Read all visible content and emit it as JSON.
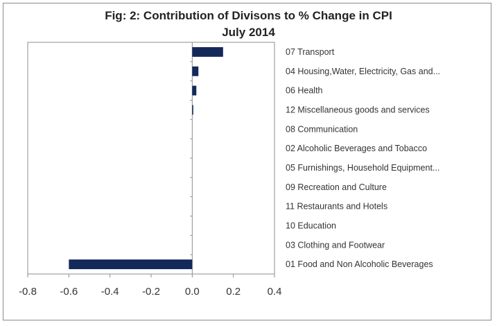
{
  "chart_data": {
    "type": "bar",
    "orientation": "horizontal",
    "title_line1": "Fig: 2: Contribution of Divisons to % Change in CPI",
    "title_line2": "July 2014",
    "categories": [
      "07 Transport",
      "04 Housing,Water, Electricity, Gas and...",
      "06 Health",
      "12 Miscellaneous goods and services",
      "08 Communication",
      "02 Alcoholic Beverages and Tobacco",
      "05 Furnishings, Household Equipment...",
      "09 Recreation and Culture",
      "11 Restaurants and Hotels",
      "10 Education",
      "03 Clothing and Footwear",
      "01 Food and Non Alcoholic Beverages"
    ],
    "values": [
      0.15,
      0.03,
      0.02,
      0.005,
      0.0,
      0.0,
      0.0,
      0.0,
      0.0,
      0.0,
      0.0,
      -0.6
    ],
    "xlim": [
      -0.8,
      0.4
    ],
    "xticks": [
      -0.8,
      -0.6,
      -0.4,
      -0.2,
      0.0,
      0.2,
      0.4
    ],
    "xtick_labels": [
      "-0.8",
      "-0.6",
      "-0.4",
      "-0.2",
      "0.0",
      "0.2",
      "0.4"
    ],
    "xlabel": "",
    "ylabel": "",
    "grid": false,
    "legend": "none",
    "bar_color": "#14285a",
    "axis_color": "#8c8c8c"
  }
}
